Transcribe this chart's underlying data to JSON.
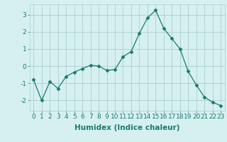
{
  "x": [
    0,
    1,
    2,
    3,
    4,
    5,
    6,
    7,
    8,
    9,
    10,
    11,
    12,
    13,
    14,
    15,
    16,
    17,
    18,
    19,
    20,
    21,
    22,
    23
  ],
  "y": [
    -0.8,
    -2.0,
    -0.9,
    -1.3,
    -0.6,
    -0.35,
    -0.15,
    0.05,
    0.0,
    -0.25,
    -0.2,
    0.55,
    0.85,
    1.9,
    2.8,
    3.25,
    2.2,
    1.6,
    1.0,
    -0.3,
    -1.1,
    -1.8,
    -2.1,
    -2.3
  ],
  "xlim": [
    -0.5,
    23.5
  ],
  "ylim": [
    -2.6,
    3.6
  ],
  "yticks": [
    -2,
    -1,
    0,
    1,
    2,
    3
  ],
  "xticks": [
    0,
    1,
    2,
    3,
    4,
    5,
    6,
    7,
    8,
    9,
    10,
    11,
    12,
    13,
    14,
    15,
    16,
    17,
    18,
    19,
    20,
    21,
    22,
    23
  ],
  "xlabel": "Humidex (Indice chaleur)",
  "line_color": "#1a7a6e",
  "marker": "D",
  "marker_size": 2.5,
  "bg_color": "#d6f0f0",
  "grid_color": "#aacfcf",
  "axis_label_color": "#1a7a6e",
  "tick_color": "#1a7a6e",
  "xlabel_fontsize": 7.5,
  "tick_fontsize": 6.5
}
